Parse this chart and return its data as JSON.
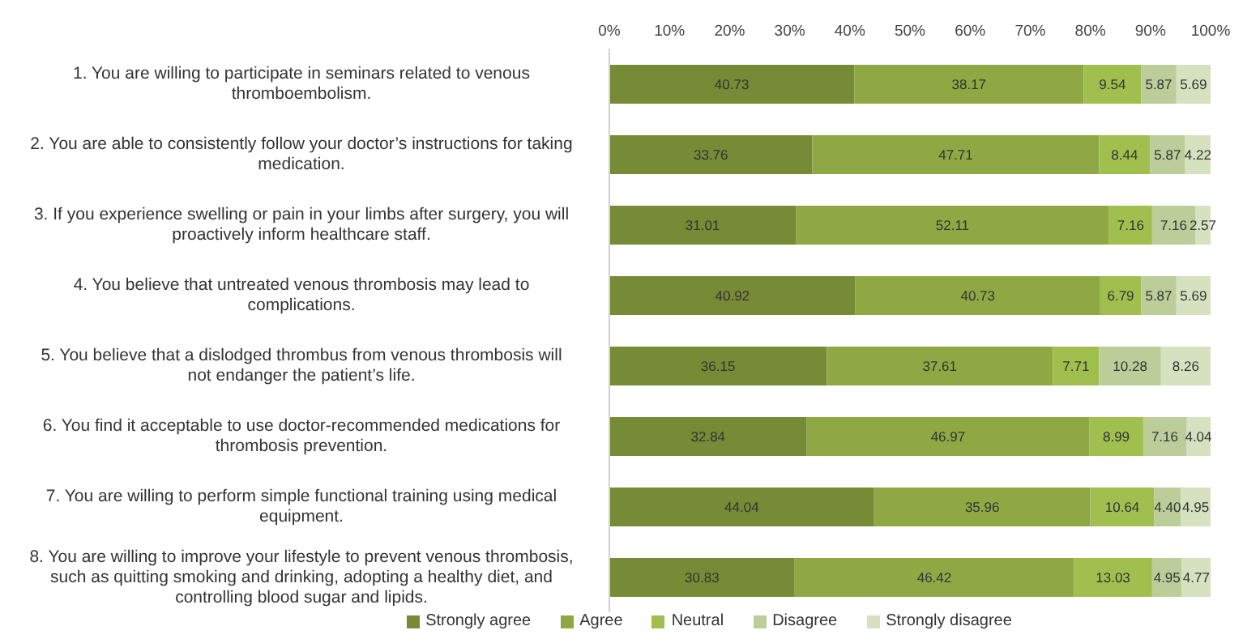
{
  "chart_data": {
    "type": "bar",
    "orientation": "horizontal",
    "stacked": true,
    "grid": false,
    "legend": "bottom",
    "categories": [
      "1. You are willing to participate in seminars related to venous thromboembolism.",
      "2. You are able to consistently  follow your doctor’s instructions  for taking medication.",
      "3. If you experience swelling or pain in your limbs after surgery, you will proactively inform healthcare staff.",
      "4. You believe that untreated venous thrombosis may lead to complications.",
      "5. You believe that a dislodged  thrombus  from venous thrombosis  will not endanger the patient’s life.",
      "6. You find it acceptable to use doctor-recommended medications for thrombosis prevention.",
      "7. You are willing to perform simple functional training using medical equipment.",
      "8. You are willing to improve your lifestyle to prevent venous thrombosis, such as quitting smoking and drinking, adopting a healthy diet, and controlling blood sugar and lipids."
    ],
    "xlim": [
      0,
      100
    ],
    "xticks": [
      {
        "value": 0,
        "label": "0%"
      },
      {
        "value": 10,
        "label": "10%"
      },
      {
        "value": 20,
        "label": "20%"
      },
      {
        "value": 30,
        "label": "30%"
      },
      {
        "value": 40,
        "label": "40%"
      },
      {
        "value": 50,
        "label": "50%"
      },
      {
        "value": 60,
        "label": "60%"
      },
      {
        "value": 70,
        "label": "70%"
      },
      {
        "value": 80,
        "label": "80%"
      },
      {
        "value": 90,
        "label": "90%"
      },
      {
        "value": 100,
        "label": "100%"
      }
    ],
    "series": [
      {
        "name": "Strongly agree",
        "color": "#778a36",
        "values": [
          40.73,
          33.76,
          31.01,
          40.92,
          36.15,
          32.84,
          44.04,
          30.83
        ],
        "value_labels": [
          "40.73",
          "33.76",
          "31.01",
          "40.92",
          "36.15",
          "32.84",
          "44.04",
          "30.83"
        ]
      },
      {
        "name": "Agree",
        "color": "#8fa844",
        "values": [
          38.17,
          47.71,
          52.11,
          40.73,
          37.61,
          46.97,
          35.96,
          46.42
        ],
        "value_labels": [
          "38.17",
          "47.71",
          "52.11",
          "40.73",
          "37.61",
          "46.97",
          "35.96",
          "46.42"
        ]
      },
      {
        "name": "Neutral",
        "color": "#a0bf4e",
        "values": [
          9.54,
          8.44,
          7.16,
          6.79,
          7.71,
          8.99,
          10.64,
          13.03
        ],
        "value_labels": [
          "9.54",
          "8.44",
          "7.16",
          "6.79",
          "7.71",
          "8.99",
          "10.64",
          "13.03"
        ]
      },
      {
        "name": "Disagree",
        "color": "#bccd99",
        "values": [
          5.87,
          5.87,
          7.16,
          5.87,
          10.28,
          7.16,
          4.4,
          4.95
        ],
        "value_labels": [
          "5.87",
          "5.87",
          "7.16",
          "5.87",
          "10.28",
          "7.16",
          "4.40",
          "4.95"
        ]
      },
      {
        "name": "Strongly disagree",
        "color": "#d6e1c0",
        "values": [
          5.69,
          4.22,
          2.57,
          5.69,
          8.26,
          4.04,
          4.95,
          4.77
        ],
        "value_labels": [
          "5.69",
          "4.22",
          "2.57",
          "5.69",
          "8.26",
          "4.04",
          "4.95",
          "4.77"
        ]
      }
    ]
  }
}
